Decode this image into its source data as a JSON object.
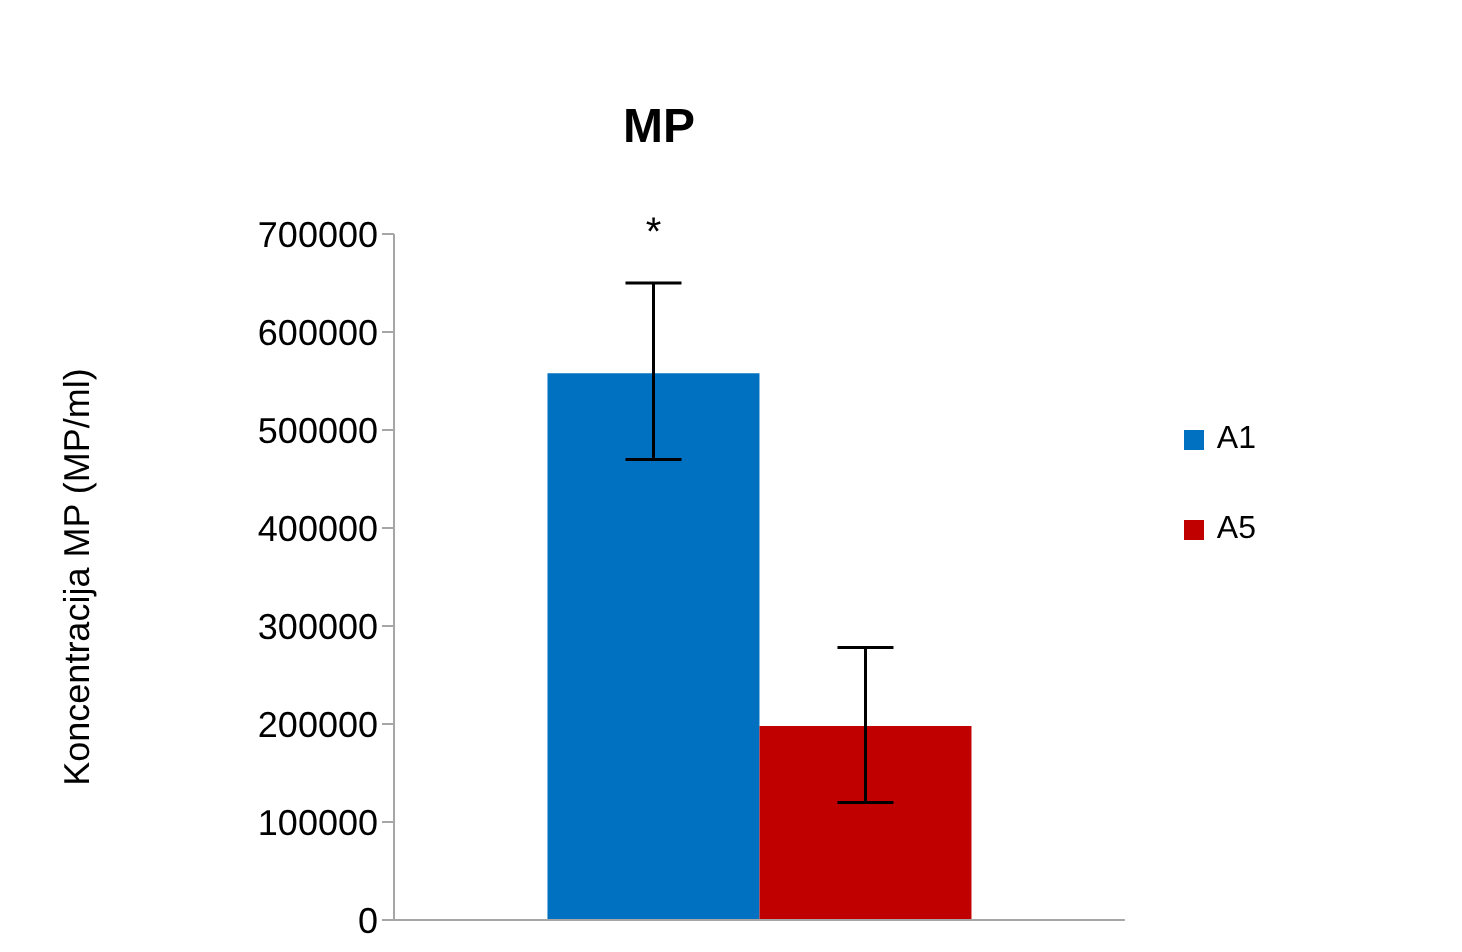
{
  "chart_data": {
    "type": "bar",
    "title": "MP",
    "ylabel": "Koncentracija MP (MP/ml)",
    "categories": [
      null
    ],
    "series": [
      {
        "name": "A1",
        "color": "#0070c0",
        "values": [
          558000
        ],
        "errors": [
          [
            470000,
            650000
          ]
        ]
      },
      {
        "name": "A5",
        "color": "#c00000",
        "values": [
          198000
        ],
        "errors": [
          [
            120000,
            278000
          ]
        ]
      }
    ],
    "ylim": [
      0,
      700000
    ],
    "yticks": [
      0,
      100000,
      200000,
      300000,
      400000,
      500000,
      600000,
      700000
    ],
    "grid": false,
    "legend": "right",
    "annotations": [
      "*"
    ]
  }
}
